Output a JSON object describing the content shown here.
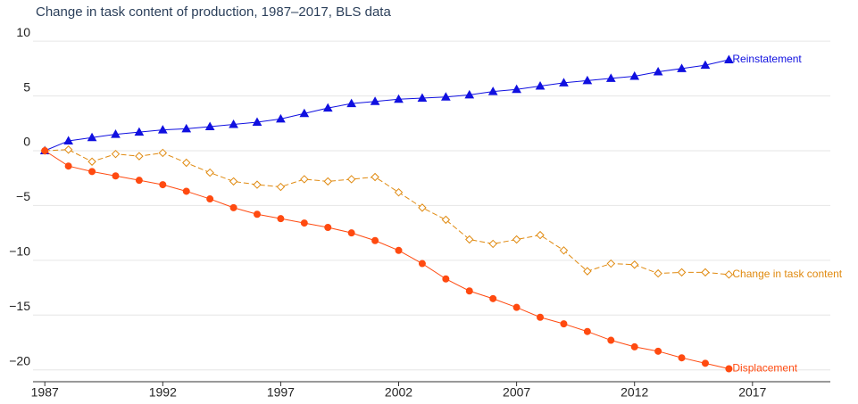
{
  "chart_data": {
    "type": "line",
    "title": "Change in task content of production, 1987–2017, BLS data",
    "x": [
      1987,
      1988,
      1989,
      1990,
      1991,
      1992,
      1993,
      1994,
      1995,
      1996,
      1997,
      1998,
      1999,
      2000,
      2001,
      2002,
      2003,
      2004,
      2005,
      2006,
      2007,
      2008,
      2009,
      2010,
      2011,
      2012,
      2013,
      2014,
      2015,
      2016
    ],
    "series": [
      {
        "name": "Reinstatement",
        "color": "#1010e0",
        "marker": "triangle",
        "dash": "solid",
        "values": [
          0,
          0.9,
          1.2,
          1.5,
          1.7,
          1.9,
          2.0,
          2.2,
          2.4,
          2.6,
          2.9,
          3.4,
          3.9,
          4.3,
          4.5,
          4.7,
          4.8,
          4.9,
          5.1,
          5.4,
          5.6,
          5.9,
          6.2,
          6.4,
          6.6,
          6.8,
          7.2,
          7.5,
          7.8,
          8.3
        ]
      },
      {
        "name": "Change in task content",
        "color": "#e08a10",
        "marker": "diamond",
        "dash": "dashed",
        "values": [
          0,
          0.1,
          -1.0,
          -0.3,
          -0.5,
          -0.2,
          -1.1,
          -2.0,
          -2.8,
          -3.1,
          -3.3,
          -2.6,
          -2.8,
          -2.6,
          -2.4,
          -3.8,
          -5.2,
          -6.3,
          -8.1,
          -8.5,
          -8.1,
          -7.7,
          -9.1,
          -11.0,
          -10.3,
          -10.4,
          -11.2,
          -11.1,
          -11.1,
          -11.3
        ]
      },
      {
        "name": "Displacement",
        "color": "#ff4a10",
        "marker": "circle",
        "dash": "solid",
        "values": [
          0,
          -1.4,
          -1.9,
          -2.3,
          -2.7,
          -3.1,
          -3.7,
          -4.4,
          -5.2,
          -5.8,
          -6.2,
          -6.6,
          -7.0,
          -7.5,
          -8.2,
          -9.1,
          -10.3,
          -11.7,
          -12.8,
          -13.5,
          -14.3,
          -15.2,
          -15.8,
          -16.5,
          -17.3,
          -17.9,
          -18.3,
          -18.9,
          -19.4,
          -19.9
        ]
      }
    ],
    "xlim": [
      1986.5,
      2020.3
    ],
    "xticks": [
      1987,
      1992,
      1997,
      2002,
      2007,
      2012,
      2017
    ],
    "ylim": [
      -21,
      10.5
    ],
    "yticks": [
      10,
      5,
      0,
      {
        "value": -5,
        "label": "−5"
      },
      {
        "value": -10,
        "label": "−10"
      },
      {
        "value": -15,
        "label": "−15"
      },
      {
        "value": -20,
        "label": "−20"
      }
    ],
    "grid": true
  }
}
